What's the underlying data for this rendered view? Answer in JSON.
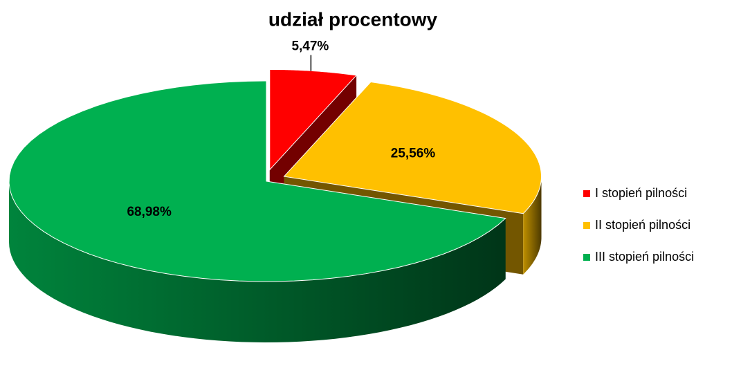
{
  "chart_data": {
    "type": "pie",
    "title": "udział procentowy",
    "categories": [
      "I stopień pilności",
      "II stopień pilności",
      "III stopień pilności"
    ],
    "values": [
      5.47,
      25.56,
      68.98
    ],
    "value_labels": [
      "5,47%",
      "25,56%",
      "68,98%"
    ],
    "colors": [
      "#ff0000",
      "#ffc000",
      "#00b050"
    ],
    "legend": "right"
  }
}
